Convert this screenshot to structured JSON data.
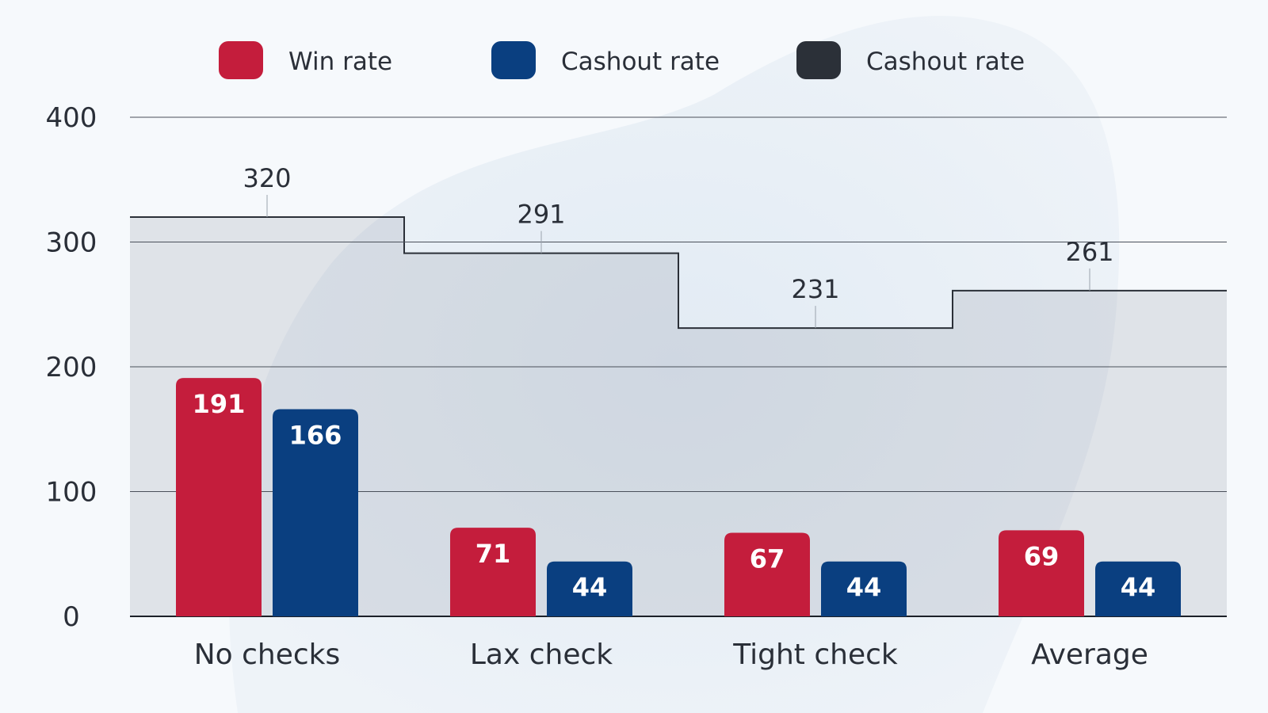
{
  "chart_data": {
    "type": "bar",
    "categories": [
      "No checks",
      "Lax check",
      "Tight  check",
      "Average"
    ],
    "series": [
      {
        "name": "Win rate",
        "color": "#c41d3c",
        "values": [
          191,
          71,
          67,
          69
        ],
        "kind": "bar"
      },
      {
        "name": "Cashout rate",
        "color": "#0a3f80",
        "values": [
          166,
          44,
          44,
          44
        ],
        "kind": "bar"
      },
      {
        "name": "Cashout rate",
        "color": "#2b3038",
        "values": [
          320,
          291,
          231,
          261
        ],
        "kind": "step-area"
      }
    ],
    "y_ticks": [
      "0",
      "100",
      "200",
      "300",
      "400"
    ],
    "ylim": [
      0,
      400
    ],
    "grid": true,
    "legend_position": "top-center",
    "title": "",
    "xlabel": "",
    "ylabel": ""
  }
}
